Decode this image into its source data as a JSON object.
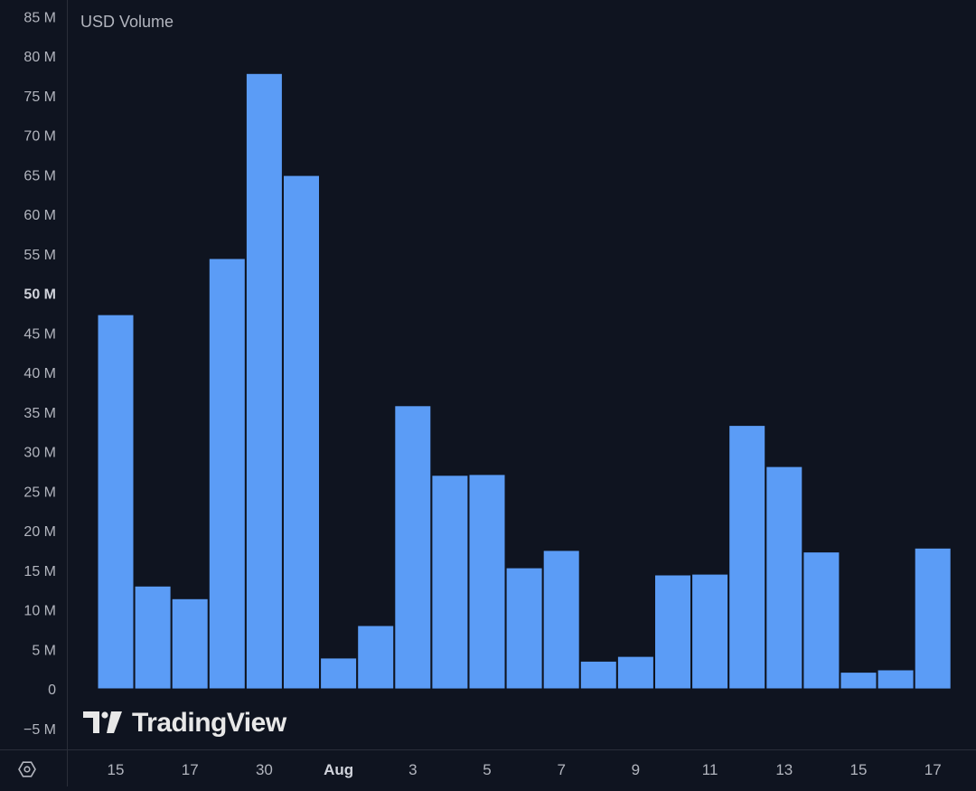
{
  "series_title": "USD Volume",
  "watermark": "TradingView",
  "settings_icon": "hexagon-settings-icon",
  "colors": {
    "background": "#0f1420",
    "bar": "#5b9cf6",
    "axis_text": "#b2b5be",
    "axis_line": "#2a2e39"
  },
  "chart_data": {
    "type": "bar",
    "title": "",
    "series": [
      {
        "name": "USD Volume",
        "values": [
          47.3,
          13.0,
          11.4,
          54.4,
          77.8,
          64.9,
          3.9,
          8.0,
          35.8,
          27.0,
          27.1,
          15.3,
          17.5,
          3.5,
          4.1,
          14.4,
          14.5,
          33.3,
          28.1,
          17.3,
          2.1,
          2.4,
          17.8
        ]
      }
    ],
    "unit": "M",
    "ylim": [
      -7,
      87
    ],
    "yticks": [
      {
        "value": 85,
        "label": "85 M"
      },
      {
        "value": 80,
        "label": "80 M"
      },
      {
        "value": 75,
        "label": "75 M"
      },
      {
        "value": 70,
        "label": "70 M"
      },
      {
        "value": 65,
        "label": "65 M"
      },
      {
        "value": 60,
        "label": "60 M"
      },
      {
        "value": 55,
        "label": "55 M"
      },
      {
        "value": 50,
        "label": "50 M",
        "bold": true
      },
      {
        "value": 45,
        "label": "45 M"
      },
      {
        "value": 40,
        "label": "40 M"
      },
      {
        "value": 35,
        "label": "35 M"
      },
      {
        "value": 30,
        "label": "30 M"
      },
      {
        "value": 25,
        "label": "25 M"
      },
      {
        "value": 20,
        "label": "20 M"
      },
      {
        "value": 15,
        "label": "15 M"
      },
      {
        "value": 10,
        "label": "10 M"
      },
      {
        "value": 5,
        "label": "5 M"
      },
      {
        "value": 0,
        "label": "0"
      },
      {
        "value": -5,
        "label": "−5 M"
      }
    ],
    "xticks": [
      {
        "bar": 0,
        "label": "15"
      },
      {
        "bar": 2,
        "label": "17"
      },
      {
        "bar": 4,
        "label": "30"
      },
      {
        "bar": 6,
        "label": "Aug",
        "bold": true
      },
      {
        "bar": 8,
        "label": "3"
      },
      {
        "bar": 10,
        "label": "5"
      },
      {
        "bar": 12,
        "label": "7"
      },
      {
        "bar": 14,
        "label": "9"
      },
      {
        "bar": 16,
        "label": "11"
      },
      {
        "bar": 18,
        "label": "13"
      },
      {
        "bar": 20,
        "label": "15"
      },
      {
        "bar": 22,
        "label": "17"
      }
    ],
    "grid": false,
    "legend": "top-left"
  }
}
